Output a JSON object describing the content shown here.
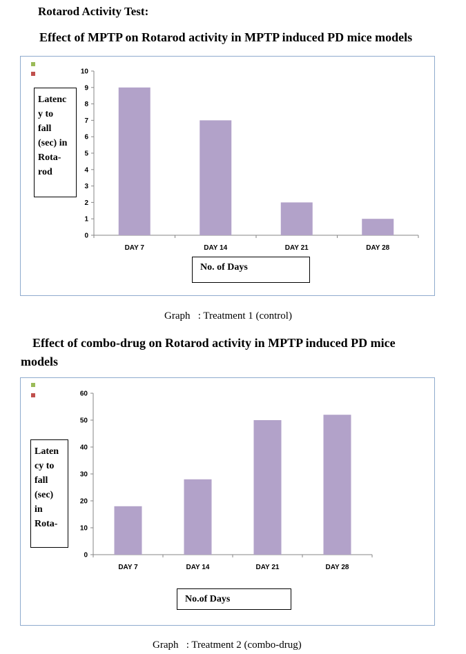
{
  "page": {
    "section_title": "Rotarod Activity Test:",
    "chart1_title": "Effect of MPTP on Rotarod activity in MPTP induced PD mice models",
    "chart1_caption": "Graph   : Treatment 1 (control)",
    "chart2_title": "Effect of combo-drug on Rotarod activity in MPTP induced PD mice models",
    "chart2_caption": "Graph   : Treatment 2 (combo-drug)"
  },
  "colors": {
    "bar": "#b2a2c9",
    "legend_green": "#9bbb59",
    "legend_red": "#c0504d",
    "frame": "#8eaacd"
  },
  "chart_data": [
    {
      "type": "bar",
      "categories": [
        "DAY 7",
        "DAY 14",
        "DAY 21",
        "DAY 28"
      ],
      "values": [
        9,
        7,
        2,
        1
      ],
      "ylabel": "Latenc\ny to\nfall\n(sec) in\nRota-\nrod",
      "xlabel": "No. of Days",
      "ylim": [
        0,
        10
      ],
      "yticks": [
        0,
        1,
        2,
        3,
        4,
        5,
        6,
        7,
        8,
        9,
        10
      ],
      "grid": false
    },
    {
      "type": "bar",
      "categories": [
        "DAY 7",
        "DAY 14",
        "DAY 21",
        "DAY 28"
      ],
      "values": [
        18,
        28,
        50,
        52
      ],
      "ylabel": "Laten\ncy to\nfall\n(sec)\nin\nRota-",
      "xlabel": "No.of Days",
      "ylim": [
        0,
        60
      ],
      "yticks": [
        0,
        10,
        20,
        30,
        40,
        50,
        60
      ],
      "grid": false
    }
  ]
}
